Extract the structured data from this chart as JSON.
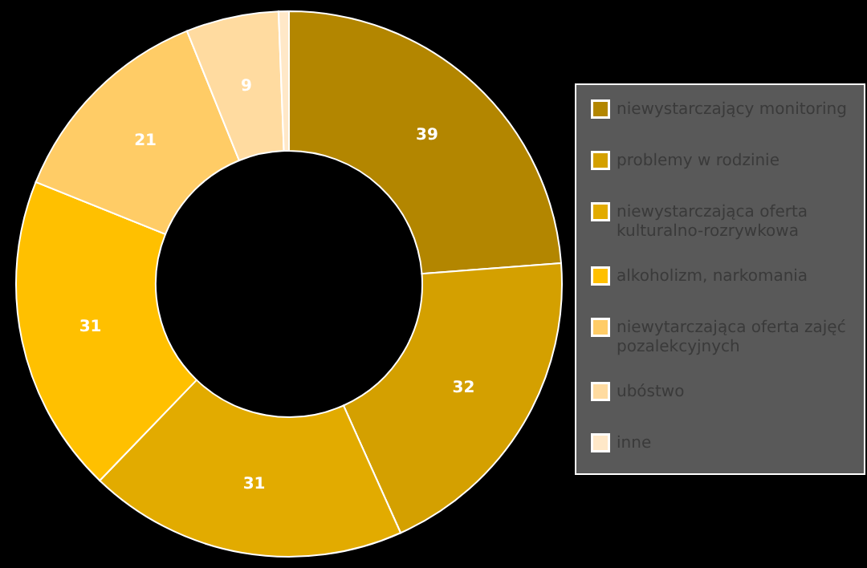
{
  "chart_data": {
    "type": "donut",
    "categories": [
      "niewystarczający monitoring",
      "problemy w rodzinie",
      "niewystarczająca oferta kulturalno-rozrywkowa",
      "alkoholizm, narkomania",
      "niewytarczająca oferta zajęć pozalekcyjnych",
      "ubóstwo",
      "inne"
    ],
    "values": [
      39,
      32,
      31,
      31,
      21,
      9,
      1
    ],
    "value_labels": [
      "39",
      "32",
      "31",
      "31",
      "21",
      "9",
      null
    ],
    "colors": [
      "#b38600",
      "#d4a000",
      "#e2ab00",
      "#ffc000",
      "#ffcc66",
      "#ffdba0",
      "#ffe8c8"
    ],
    "legend": "right"
  }
}
